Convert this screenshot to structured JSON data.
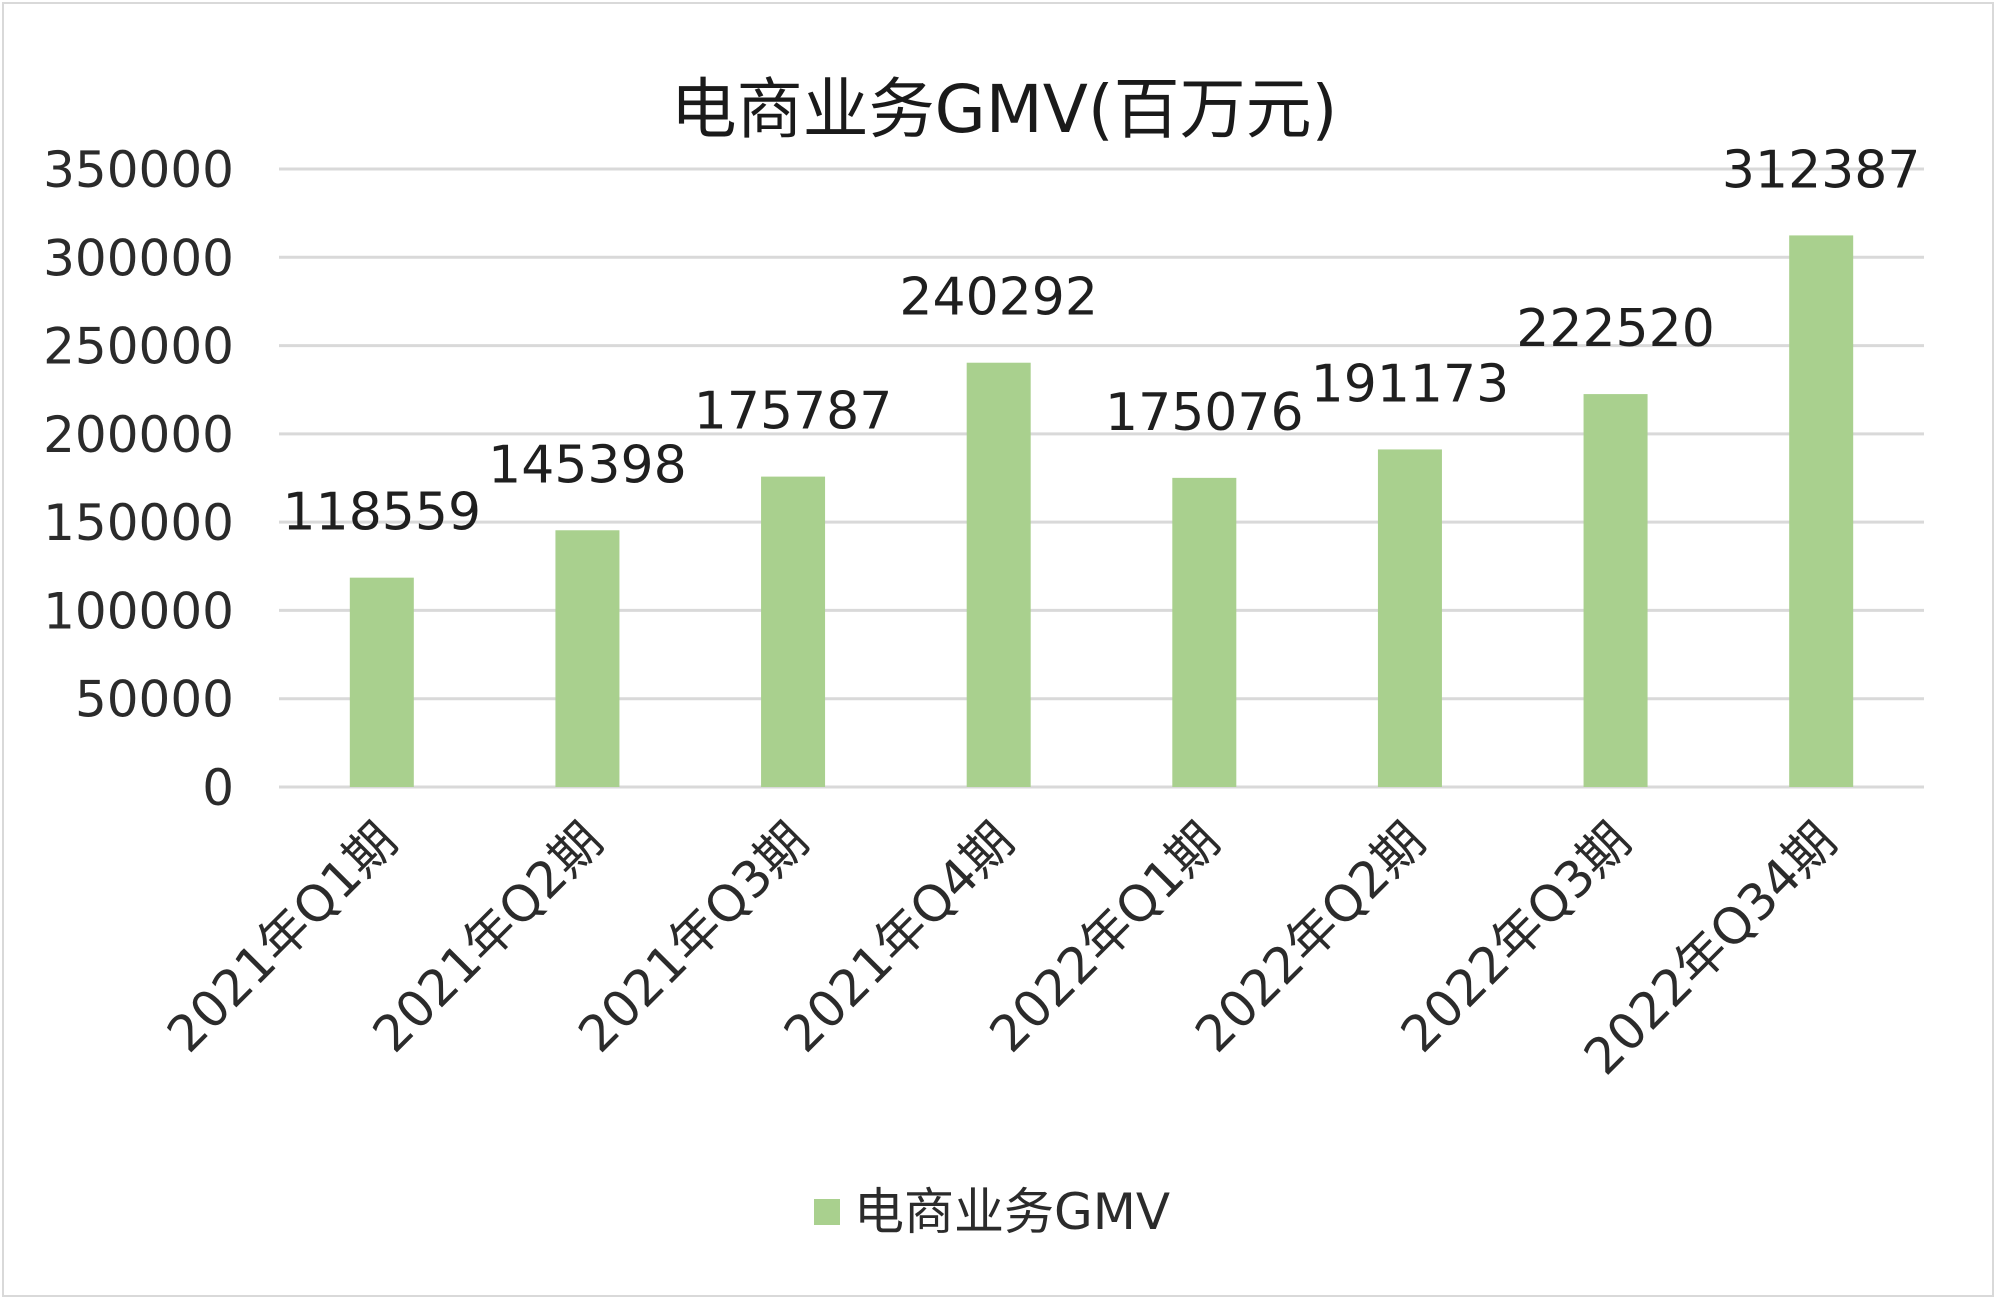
{
  "chart_data": {
    "type": "bar",
    "title": "电商业务GMV(百万元)",
    "categories": [
      "2021年Q1期",
      "2021年Q2期",
      "2021年Q3期",
      "2021年Q4期",
      "2022年Q1期",
      "2022年Q2期",
      "2022年Q3期",
      "2022年Q34期"
    ],
    "series": [
      {
        "name": "电商业务GMV",
        "color": "#a9d08e",
        "values": [
          118559,
          145398,
          175787,
          240292,
          175076,
          191173,
          222520,
          312387
        ]
      }
    ],
    "data_labels": [
      "118559",
      "145398",
      "175787",
      "240292",
      "175076",
      "191173",
      "222520",
      "312387"
    ],
    "y_ticks": [
      "0",
      "50000",
      "100000",
      "150000",
      "200000",
      "250000",
      "300000",
      "350000"
    ],
    "ylim": [
      0,
      350000
    ],
    "xlabel": "",
    "ylabel": "",
    "grid": true,
    "legend_position": "bottom",
    "gridline_color": "#d9d9d9"
  }
}
